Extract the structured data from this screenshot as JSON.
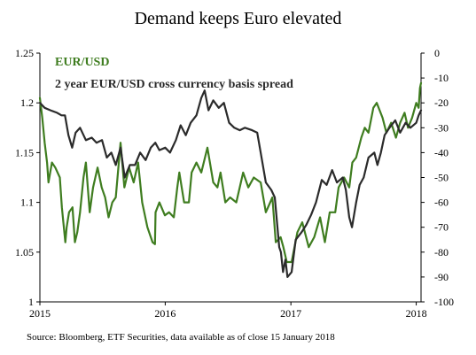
{
  "chart_data": {
    "type": "line",
    "title": "Demand keeps Euro elevated",
    "source": "Source: Bloomberg, ETF Securities, data available as of close 15 January 2018",
    "x_ticks": [
      "2015",
      "2016",
      "2017",
      "2018"
    ],
    "xlim": [
      "2015-01-01",
      "2018-01-15"
    ],
    "y_left": {
      "lim": [
        1.0,
        1.25
      ],
      "ticks": [
        "1",
        "1.05",
        "1.1",
        "1.15",
        "1.2",
        "1.25"
      ]
    },
    "y_right": {
      "lim": [
        -100,
        0
      ],
      "ticks": [
        "0",
        "-10",
        "-20",
        "-30",
        "-40",
        "-50",
        "-60",
        "-70",
        "-80",
        "-90",
        "-100"
      ]
    },
    "colors": {
      "eurusd": "#3f7d20",
      "basis": "#2b2b2b"
    },
    "series": [
      {
        "name": "EUR/USD",
        "axis": "left",
        "points": [
          [
            "2015-01-01",
            1.205
          ],
          [
            "2015-01-08",
            1.185
          ],
          [
            "2015-01-15",
            1.16
          ],
          [
            "2015-01-22",
            1.14
          ],
          [
            "2015-01-26",
            1.12
          ],
          [
            "2015-02-05",
            1.14
          ],
          [
            "2015-02-15",
            1.135
          ],
          [
            "2015-02-28",
            1.125
          ],
          [
            "2015-03-06",
            1.095
          ],
          [
            "2015-03-16",
            1.06
          ],
          [
            "2015-03-20",
            1.075
          ],
          [
            "2015-03-27",
            1.09
          ],
          [
            "2015-04-06",
            1.095
          ],
          [
            "2015-04-13",
            1.06
          ],
          [
            "2015-04-20",
            1.07
          ],
          [
            "2015-04-28",
            1.09
          ],
          [
            "2015-05-08",
            1.125
          ],
          [
            "2015-05-15",
            1.14
          ],
          [
            "2015-05-26",
            1.09
          ],
          [
            "2015-06-05",
            1.115
          ],
          [
            "2015-06-18",
            1.135
          ],
          [
            "2015-06-30",
            1.115
          ],
          [
            "2015-07-10",
            1.105
          ],
          [
            "2015-07-20",
            1.085
          ],
          [
            "2015-07-31",
            1.1
          ],
          [
            "2015-08-10",
            1.105
          ],
          [
            "2015-08-24",
            1.16
          ],
          [
            "2015-09-04",
            1.115
          ],
          [
            "2015-09-18",
            1.135
          ],
          [
            "2015-10-01",
            1.12
          ],
          [
            "2015-10-14",
            1.14
          ],
          [
            "2015-10-26",
            1.1
          ],
          [
            "2015-11-10",
            1.075
          ],
          [
            "2015-11-25",
            1.06
          ],
          [
            "2015-12-02",
            1.058
          ],
          [
            "2015-12-04",
            1.09
          ],
          [
            "2015-12-15",
            1.1
          ],
          [
            "2015-12-31",
            1.087
          ],
          [
            "2016-01-12",
            1.09
          ],
          [
            "2016-01-26",
            1.085
          ],
          [
            "2016-02-05",
            1.115
          ],
          [
            "2016-02-11",
            1.13
          ],
          [
            "2016-02-25",
            1.1
          ],
          [
            "2016-03-10",
            1.1
          ],
          [
            "2016-03-18",
            1.13
          ],
          [
            "2016-04-01",
            1.14
          ],
          [
            "2016-04-15",
            1.13
          ],
          [
            "2016-05-03",
            1.155
          ],
          [
            "2016-05-20",
            1.12
          ],
          [
            "2016-06-01",
            1.115
          ],
          [
            "2016-06-10",
            1.13
          ],
          [
            "2016-06-24",
            1.1
          ],
          [
            "2016-07-08",
            1.105
          ],
          [
            "2016-07-26",
            1.1
          ],
          [
            "2016-08-15",
            1.13
          ],
          [
            "2016-08-30",
            1.115
          ],
          [
            "2016-09-15",
            1.125
          ],
          [
            "2016-10-05",
            1.12
          ],
          [
            "2016-10-20",
            1.09
          ],
          [
            "2016-11-08",
            1.105
          ],
          [
            "2016-11-18",
            1.06
          ],
          [
            "2016-12-02",
            1.065
          ],
          [
            "2016-12-10",
            1.055
          ],
          [
            "2016-12-20",
            1.04
          ],
          [
            "2017-01-03",
            1.04
          ],
          [
            "2017-01-20",
            1.07
          ],
          [
            "2017-02-03",
            1.08
          ],
          [
            "2017-02-22",
            1.055
          ],
          [
            "2017-03-10",
            1.065
          ],
          [
            "2017-03-27",
            1.085
          ],
          [
            "2017-04-10",
            1.06
          ],
          [
            "2017-04-24",
            1.09
          ],
          [
            "2017-05-10",
            1.09
          ],
          [
            "2017-05-20",
            1.115
          ],
          [
            "2017-06-05",
            1.125
          ],
          [
            "2017-06-20",
            1.115
          ],
          [
            "2017-06-29",
            1.14
          ],
          [
            "2017-07-10",
            1.145
          ],
          [
            "2017-07-25",
            1.165
          ],
          [
            "2017-08-04",
            1.175
          ],
          [
            "2017-08-15",
            1.17
          ],
          [
            "2017-08-29",
            1.195
          ],
          [
            "2017-09-08",
            1.2
          ],
          [
            "2017-09-25",
            1.185
          ],
          [
            "2017-10-06",
            1.17
          ],
          [
            "2017-10-20",
            1.18
          ],
          [
            "2017-11-03",
            1.165
          ],
          [
            "2017-11-15",
            1.18
          ],
          [
            "2017-11-28",
            1.19
          ],
          [
            "2017-12-08",
            1.175
          ],
          [
            "2017-12-20",
            1.185
          ],
          [
            "2018-01-01",
            1.2
          ],
          [
            "2018-01-08",
            1.195
          ],
          [
            "2018-01-12",
            1.215
          ],
          [
            "2018-01-15",
            1.22
          ]
        ]
      },
      {
        "name": "2 year EUR/USD cross currency basis spread",
        "axis": "right",
        "points": [
          [
            "2015-01-01",
            -20
          ],
          [
            "2015-01-15",
            -22
          ],
          [
            "2015-02-01",
            -23
          ],
          [
            "2015-02-20",
            -24
          ],
          [
            "2015-03-05",
            -25
          ],
          [
            "2015-03-15",
            -25
          ],
          [
            "2015-03-25",
            -33
          ],
          [
            "2015-04-05",
            -38
          ],
          [
            "2015-04-15",
            -32
          ],
          [
            "2015-04-28",
            -30
          ],
          [
            "2015-05-15",
            -35
          ],
          [
            "2015-06-01",
            -34
          ],
          [
            "2015-06-15",
            -36
          ],
          [
            "2015-07-01",
            -35
          ],
          [
            "2015-07-15",
            -42
          ],
          [
            "2015-07-28",
            -40
          ],
          [
            "2015-08-10",
            -45
          ],
          [
            "2015-08-24",
            -38
          ],
          [
            "2015-09-05",
            -50
          ],
          [
            "2015-09-20",
            -45
          ],
          [
            "2015-10-05",
            -45
          ],
          [
            "2015-10-20",
            -40
          ],
          [
            "2015-11-05",
            -43
          ],
          [
            "2015-11-20",
            -38
          ],
          [
            "2015-12-03",
            -36
          ],
          [
            "2015-12-15",
            -39
          ],
          [
            "2016-01-01",
            -38
          ],
          [
            "2016-01-15",
            -40
          ],
          [
            "2016-02-01",
            -35
          ],
          [
            "2016-02-15",
            -29
          ],
          [
            "2016-03-01",
            -33
          ],
          [
            "2016-03-15",
            -28
          ],
          [
            "2016-04-01",
            -25
          ],
          [
            "2016-04-15",
            -18
          ],
          [
            "2016-04-25",
            -15
          ],
          [
            "2016-05-06",
            -23
          ],
          [
            "2016-05-20",
            -19
          ],
          [
            "2016-06-05",
            -22
          ],
          [
            "2016-06-20",
            -20
          ],
          [
            "2016-07-05",
            -28
          ],
          [
            "2016-07-20",
            -30
          ],
          [
            "2016-08-05",
            -31
          ],
          [
            "2016-08-20",
            -30
          ],
          [
            "2016-09-10",
            -31
          ],
          [
            "2016-09-25",
            -32
          ],
          [
            "2016-10-05",
            -40
          ],
          [
            "2016-10-20",
            -52
          ],
          [
            "2016-11-05",
            -55
          ],
          [
            "2016-11-15",
            -58
          ],
          [
            "2016-11-28",
            -78
          ],
          [
            "2016-12-03",
            -80
          ],
          [
            "2016-12-09",
            -88
          ],
          [
            "2016-12-16",
            -83
          ],
          [
            "2016-12-22",
            -90
          ],
          [
            "2017-01-03",
            -88
          ],
          [
            "2017-01-15",
            -75
          ],
          [
            "2017-02-01",
            -72
          ],
          [
            "2017-02-15",
            -69
          ],
          [
            "2017-03-01",
            -65
          ],
          [
            "2017-03-15",
            -60
          ],
          [
            "2017-04-01",
            -51
          ],
          [
            "2017-04-15",
            -53
          ],
          [
            "2017-05-01",
            -47
          ],
          [
            "2017-05-15",
            -52
          ],
          [
            "2017-06-01",
            -50
          ],
          [
            "2017-06-10",
            -55
          ],
          [
            "2017-06-20",
            -66
          ],
          [
            "2017-06-28",
            -70
          ],
          [
            "2017-07-10",
            -60
          ],
          [
            "2017-07-20",
            -53
          ],
          [
            "2017-08-01",
            -50
          ],
          [
            "2017-08-15",
            -42
          ],
          [
            "2017-09-01",
            -40
          ],
          [
            "2017-09-10",
            -45
          ],
          [
            "2017-09-20",
            -40
          ],
          [
            "2017-10-01",
            -33
          ],
          [
            "2017-10-15",
            -30
          ],
          [
            "2017-11-01",
            -27
          ],
          [
            "2017-11-15",
            -32
          ],
          [
            "2017-12-01",
            -28
          ],
          [
            "2017-12-15",
            -30
          ],
          [
            "2018-01-01",
            -28
          ],
          [
            "2018-01-08",
            -25
          ],
          [
            "2018-01-15",
            -23
          ]
        ]
      }
    ]
  }
}
